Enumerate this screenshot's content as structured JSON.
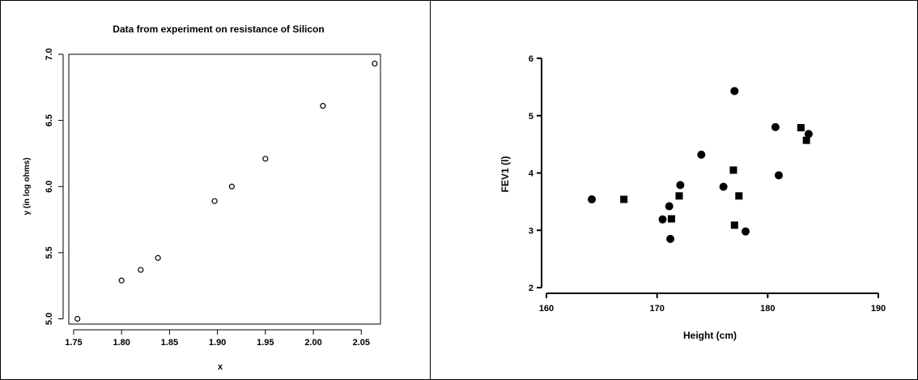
{
  "chart_data": [
    {
      "type": "scatter",
      "title": "Data from experiment on resistance of Silicon",
      "xlabel": "x",
      "ylabel": "y (in log ohms)",
      "xlim": [
        1.745,
        2.07
      ],
      "ylim": [
        4.96,
        7.0
      ],
      "x_ticks": [
        "1.75",
        "1.80",
        "1.85",
        "1.90",
        "1.95",
        "2.00",
        "2.05"
      ],
      "y_ticks": [
        "5.0",
        "5.5",
        "6.0",
        "6.5",
        "7.0"
      ],
      "x_tick_values": [
        1.75,
        1.8,
        1.85,
        1.9,
        1.95,
        2.0,
        2.05
      ],
      "y_tick_values": [
        5.0,
        5.5,
        6.0,
        6.5,
        7.0
      ],
      "marker": "open-circle",
      "points": [
        {
          "x": 1.754,
          "y": 5.0
        },
        {
          "x": 1.8,
          "y": 5.29
        },
        {
          "x": 1.82,
          "y": 5.37
        },
        {
          "x": 1.838,
          "y": 5.46
        },
        {
          "x": 1.897,
          "y": 5.89
        },
        {
          "x": 1.915,
          "y": 6.0
        },
        {
          "x": 1.95,
          "y": 6.21
        },
        {
          "x": 2.01,
          "y": 6.61
        },
        {
          "x": 2.064,
          "y": 6.93
        }
      ]
    },
    {
      "type": "scatter",
      "title": "",
      "xlabel": "Height (cm)",
      "ylabel": "FEV1 (l)",
      "xlim": [
        160,
        190
      ],
      "ylim": [
        2,
        6
      ],
      "x_ticks": [
        "160",
        "170",
        "180",
        "190"
      ],
      "y_ticks": [
        "2",
        "3",
        "4",
        "5",
        "6"
      ],
      "x_tick_values": [
        160,
        170,
        180,
        190
      ],
      "y_tick_values": [
        2,
        3,
        4,
        5,
        6
      ],
      "series": [
        {
          "marker": "filled-circle",
          "points": [
            {
              "x": 164.1,
              "y": 3.54
            },
            {
              "x": 170.5,
              "y": 3.19
            },
            {
              "x": 171.1,
              "y": 3.42
            },
            {
              "x": 171.2,
              "y": 2.85
            },
            {
              "x": 172.1,
              "y": 3.79
            },
            {
              "x": 174.0,
              "y": 4.32
            },
            {
              "x": 176.0,
              "y": 3.76
            },
            {
              "x": 177.0,
              "y": 5.43
            },
            {
              "x": 178.0,
              "y": 2.98
            },
            {
              "x": 180.7,
              "y": 4.8
            },
            {
              "x": 181.0,
              "y": 3.96
            },
            {
              "x": 183.7,
              "y": 4.68
            }
          ]
        },
        {
          "marker": "filled-square",
          "points": [
            {
              "x": 167.0,
              "y": 3.54
            },
            {
              "x": 171.3,
              "y": 3.2
            },
            {
              "x": 172.0,
              "y": 3.6
            },
            {
              "x": 176.9,
              "y": 4.05
            },
            {
              "x": 177.0,
              "y": 3.09
            },
            {
              "x": 177.4,
              "y": 3.6
            },
            {
              "x": 183.0,
              "y": 4.79
            },
            {
              "x": 183.5,
              "y": 4.57
            }
          ]
        }
      ]
    }
  ]
}
